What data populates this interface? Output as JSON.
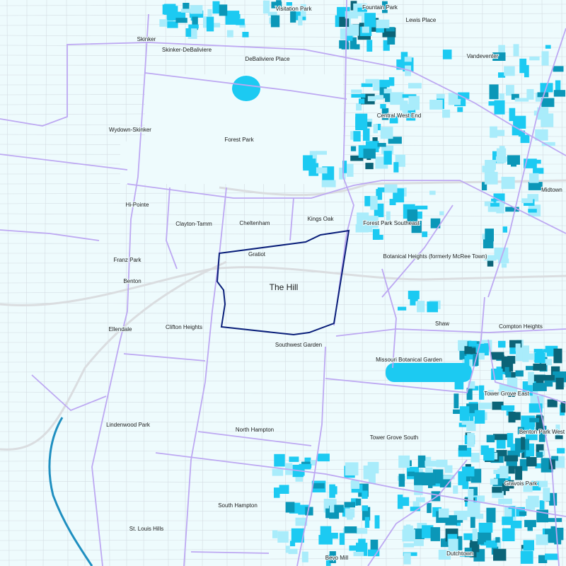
{
  "map": {
    "selected_neighborhood": "The Hill",
    "colors": {
      "background": "#eefbfd",
      "boundary": "#bda8f2",
      "selected_outline": "#0a1f7a",
      "street": "#d3dce2",
      "shade_1": "#a9ecfb",
      "shade_2": "#1ccaf2",
      "shade_3": "#0b97b8",
      "shade_4": "#0b6478",
      "river": "#1f8fc0"
    },
    "neighborhoods": [
      "Visitation Park",
      "Fountain Park",
      "Lewis Place",
      "Skinker",
      "Skinker-DeBaliviere",
      "DeBaliviere Place",
      "Vandeventer",
      "Central West End",
      "Wydown-Skinker",
      "Forest Park",
      "Midtown",
      "Hi-Pointe",
      "Clayton-Tamm",
      "Cheltenham",
      "Kings Oak",
      "Forest Park Southeast",
      "Gratiot",
      "Franz Park",
      "Botanical Heights (formerly McRee Town)",
      "Benton",
      "The Hill",
      "Ellendale",
      "Clifton Heights",
      "Shaw",
      "Compton Heights",
      "Southwest Garden",
      "Missouri Botanical Garden",
      "Tower Grove East",
      "Lindenwood Park",
      "North Hampton",
      "Tower Grove South",
      "Benton Park West",
      "Gravois Park",
      "South Hampton",
      "St. Louis Hills",
      "Dutchtown",
      "Bevo Mill"
    ]
  }
}
